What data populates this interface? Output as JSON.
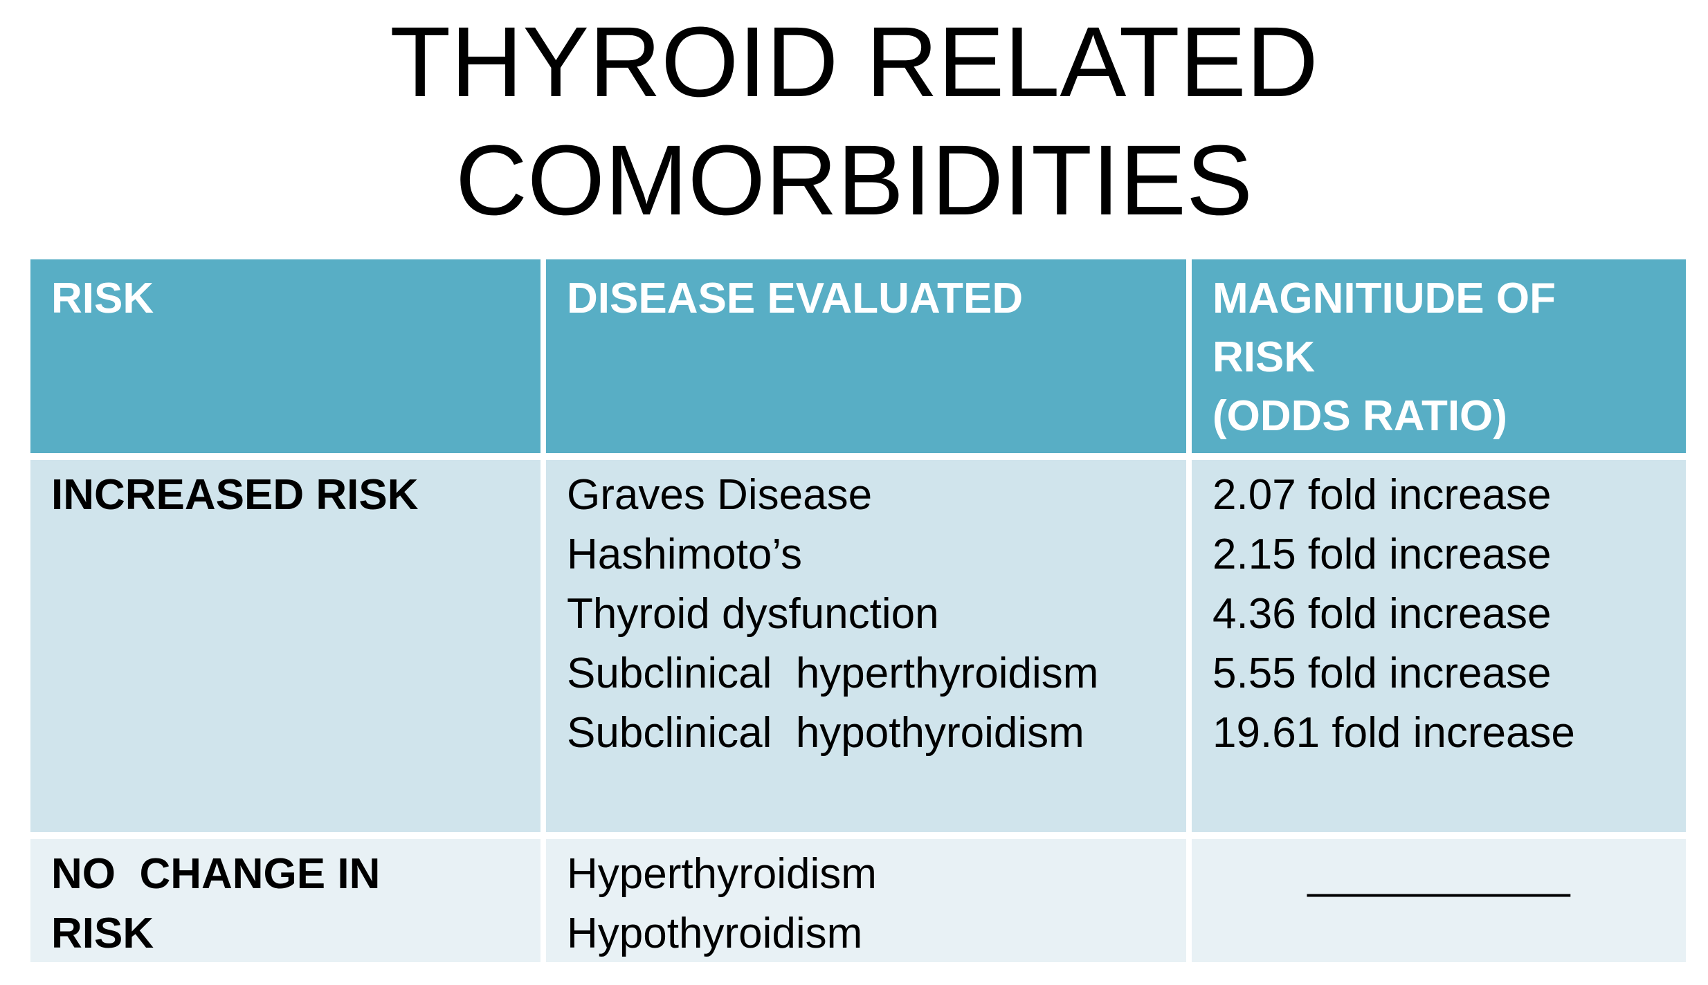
{
  "slide": {
    "title_lines": [
      "THYROID RELATED",
      "COMORBIDITIES"
    ]
  },
  "table": {
    "type": "table",
    "headers": [
      {
        "lines": [
          "RISK"
        ]
      },
      {
        "lines": [
          "DISEASE EVALUATED"
        ]
      },
      {
        "lines": [
          "MAGNITIUDE OF",
          "RISK",
          "(ODDS RATIO)"
        ]
      }
    ],
    "rows": [
      {
        "risk_lines": [
          "INCREASED RISK"
        ],
        "disease_lines": [
          "Graves Disease",
          "Hashimoto’s",
          "Thyroid dysfunction",
          "Subclinical  hyperthyroidism",
          "Subclinical  hypothyroidism"
        ],
        "magnitude_lines": [
          "2.07 fold increase",
          "2.15 fold increase",
          "4.36 fold increase",
          "5.55 fold increase",
          "19.61 fold increase"
        ]
      },
      {
        "risk_lines": [
          "NO  CHANGE IN",
          "RISK"
        ],
        "disease_lines": [
          "Hyperthyroidism",
          "Hypothyroidism"
        ],
        "magnitude_lines": [
          "___________"
        ]
      }
    ]
  },
  "colors": {
    "header_bg": "#58AEC5",
    "header_text": "#FFFFFF",
    "row1_bg": "#D0E4EC",
    "row2_bg": "#E8F1F5",
    "body_text": "#000000"
  }
}
